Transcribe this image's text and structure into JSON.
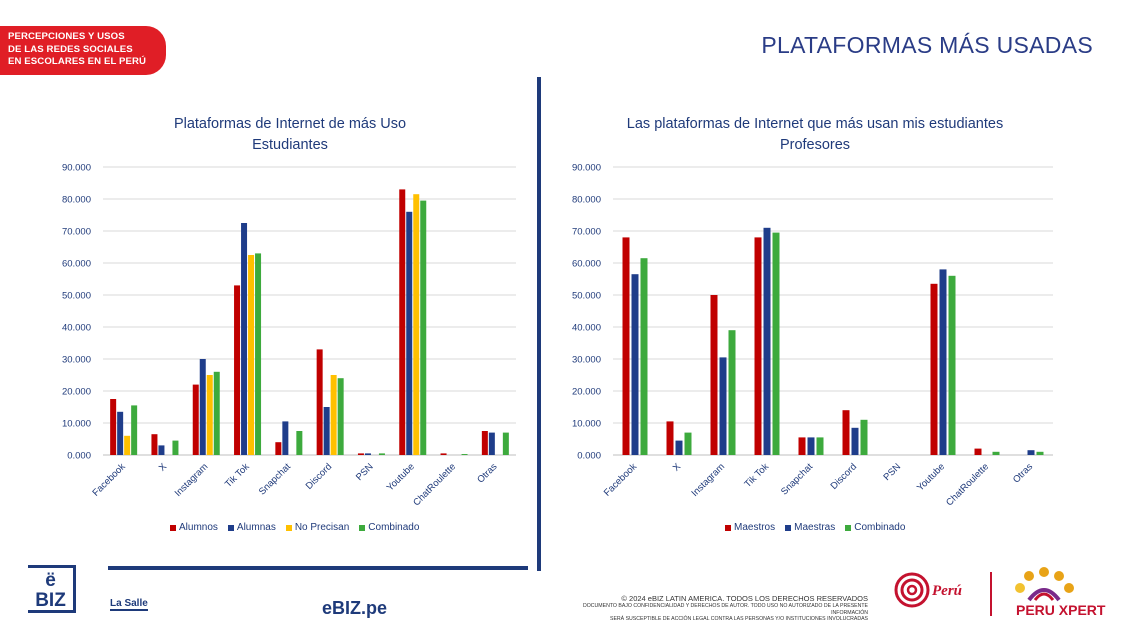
{
  "header": {
    "tag_lines": [
      "PERCEPCIONES Y USOS",
      "DE LAS REDES SOCIALES",
      "EN ESCOLARES EN EL PERÚ"
    ],
    "page_title": "PLATAFORMAS MÁS USADAS"
  },
  "colors": {
    "red": "#c00000",
    "navy": "#1f3d8a",
    "yellow": "#ffc000",
    "green": "#3daa3d",
    "grid": "#d9d9d9",
    "text": "#1f3a7a"
  },
  "chart_data": [
    {
      "type": "bar",
      "title": "Plataformas de Internet de más Uso",
      "subtitle": "Estudiantes",
      "categories": [
        "Facebook",
        "X",
        "Instagram",
        "Tik Tok",
        "Snapchat",
        "Discord",
        "PSN",
        "Youtube",
        "ChatRoulette",
        "Otras"
      ],
      "ylim": [
        0,
        90
      ],
      "yticks": [
        "0.000",
        "10.000",
        "20.000",
        "30.000",
        "40.000",
        "50.000",
        "60.000",
        "70.000",
        "80.000",
        "90.000"
      ],
      "grid": true,
      "legend_position": "bottom",
      "series": [
        {
          "name": "Alumnos",
          "color": "#c00000",
          "values": [
            17.5,
            6.5,
            22,
            53,
            4,
            33,
            0.5,
            83,
            0.5,
            7.5
          ]
        },
        {
          "name": "Alumnas",
          "color": "#1f3d8a",
          "values": [
            13.5,
            3,
            30,
            72.5,
            10.5,
            15,
            0.5,
            76,
            0,
            7
          ]
        },
        {
          "name": "No Precisan",
          "color": "#ffc000",
          "values": [
            6,
            0,
            25,
            62.5,
            0,
            25,
            0,
            81.5,
            0,
            0
          ]
        },
        {
          "name": "Combinado",
          "color": "#3daa3d",
          "values": [
            15.5,
            4.5,
            26,
            63,
            7.5,
            24,
            0.5,
            79.5,
            0.3,
            7
          ]
        }
      ]
    },
    {
      "type": "bar",
      "title": "Las plataformas de Internet que más usan mis estudiantes",
      "subtitle": "Profesores",
      "categories": [
        "Facebook",
        "X",
        "Instagram",
        "Tik Tok",
        "Snapchat",
        "Discord",
        "PSN",
        "Youtube",
        "ChatRoulette",
        "Otras"
      ],
      "ylim": [
        0,
        90
      ],
      "yticks": [
        "0.000",
        "10.000",
        "20.000",
        "30.000",
        "40.000",
        "50.000",
        "60.000",
        "70.000",
        "80.000",
        "90.000"
      ],
      "grid": true,
      "legend_position": "bottom",
      "series": [
        {
          "name": "Maestros",
          "color": "#c00000",
          "values": [
            68,
            10.5,
            50,
            68,
            5.5,
            14,
            0,
            53.5,
            2,
            0
          ]
        },
        {
          "name": "Maestras",
          "color": "#1f3d8a",
          "values": [
            56.5,
            4.5,
            30.5,
            71,
            5.5,
            8.5,
            0,
            58,
            0,
            1.5
          ]
        },
        {
          "name": "Combinado",
          "color": "#3daa3d",
          "values": [
            61.5,
            7,
            39,
            69.5,
            5.5,
            11,
            0,
            56,
            1,
            1
          ]
        }
      ]
    }
  ],
  "footer": {
    "ebiz_logo_text": "ë BIZ",
    "lasalle_text": "La Salle",
    "ebiz_pe": "eBIZ.pe",
    "copyright_line1": "© 2024 eBIZ LATIN AMERICA. TODOS LOS DERECHOS RESERVADOS",
    "copyright_line2": "DOCUMENTO BAJO CONFIDENCIALIDAD Y DERECHOS DE AUTOR. TODO USO NO AUTORIZADO DE LA PRESENTE INFORMACIÓN",
    "copyright_line3": "SERÁ SUSCEPTIBLE DE ACCIÓN LEGAL CONTRA LAS PERSONAS Y/O INSTITUCIONES INVOLUCRADAS",
    "peru_brand": "Perú",
    "peru_xpert": "PERU XPERT"
  }
}
